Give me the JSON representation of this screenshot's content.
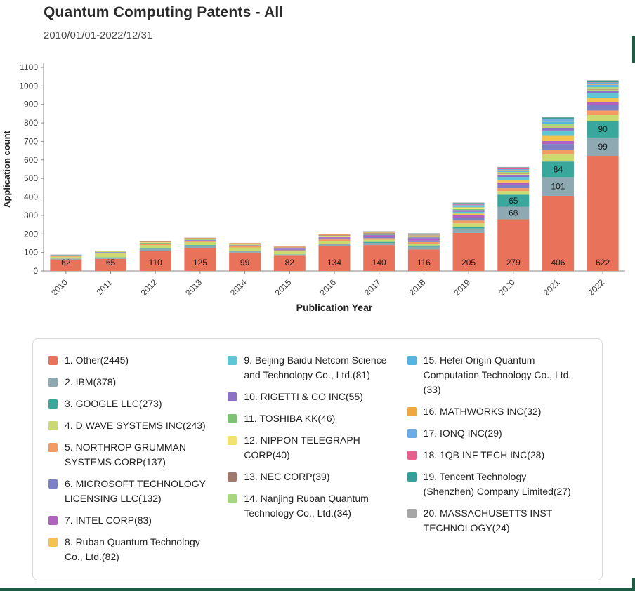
{
  "header": {
    "title": "Quantum Computing Patents - All",
    "date_range": "2010/01/01-2022/12/31"
  },
  "accents": {
    "edge_color": "#1E5B44",
    "axis_color": "#8a8a8a",
    "tick_label_color": "#3a3a3a",
    "bar_label_color": "#1a1a1a"
  },
  "chart_data": {
    "type": "bar",
    "stacked": true,
    "title": "Quantum Computing Patents - All",
    "xlabel": "Publication Year",
    "ylabel": "Application count",
    "ylim": [
      0,
      1100
    ],
    "y_tick_step": 100,
    "grid": false,
    "legend_position": "bottom",
    "legend_columns": [
      8,
      6,
      6
    ],
    "categories": [
      "2010",
      "2011",
      "2012",
      "2013",
      "2014",
      "2015",
      "2016",
      "2017",
      "2018",
      "2019",
      "2020",
      "2021",
      "2022"
    ],
    "labeled_segments_note": "Values labeled on chart: Other all years; IBM 2020-2022 (68,101,99); GOOGLE LLC 2020-2022 (65,84,90); other segment values estimated from bar heights",
    "series": [
      {
        "name": "Other",
        "total": 2445,
        "color": "#E8735A",
        "values": [
          62,
          65,
          110,
          125,
          99,
          82,
          134,
          140,
          116,
          205,
          279,
          406,
          622
        ]
      },
      {
        "name": "IBM",
        "total": 378,
        "color": "#8EA9B1",
        "values": [
          5,
          8,
          10,
          12,
          8,
          6,
          10,
          12,
          15,
          24,
          68,
          101,
          99
        ]
      },
      {
        "name": "GOOGLE LLC",
        "total": 273,
        "color": "#39A79C",
        "values": [
          0,
          1,
          2,
          3,
          2,
          2,
          4,
          5,
          7,
          8,
          65,
          84,
          90
        ]
      },
      {
        "name": "D WAVE SYSTEMS INC",
        "total": 243,
        "color": "#CBDA6F",
        "values": [
          10,
          20,
          18,
          16,
          18,
          16,
          14,
          12,
          10,
          20,
          20,
          38,
          31
        ]
      },
      {
        "name": "NORTHROP GRUMMAN SYSTEMS CORP",
        "total": 137,
        "color": "#F49B63",
        "values": [
          3,
          5,
          5,
          6,
          6,
          6,
          8,
          8,
          8,
          15,
          15,
          27,
          25
        ]
      },
      {
        "name": "MICROSOFT TECHNOLOGY LICENSING LLC",
        "total": 132,
        "color": "#7B80C7",
        "values": [
          2,
          3,
          3,
          4,
          4,
          5,
          6,
          7,
          8,
          14,
          16,
          30,
          30
        ]
      },
      {
        "name": "INTEL CORP",
        "total": 83,
        "color": "#B161BE",
        "values": [
          0,
          0,
          1,
          1,
          2,
          3,
          5,
          6,
          8,
          14,
          12,
          16,
          15
        ]
      },
      {
        "name": "Ruban Quantum Technology Co., Ltd.",
        "total": 82,
        "color": "#F3C24F",
        "values": [
          0,
          0,
          0,
          0,
          0,
          0,
          0,
          0,
          2,
          10,
          18,
          28,
          24
        ]
      },
      {
        "name": "Beijing Baidu Netcom Science and Technology Co., Ltd.",
        "total": 81,
        "color": "#5FC6D4",
        "values": [
          0,
          0,
          0,
          0,
          0,
          0,
          0,
          0,
          1,
          9,
          15,
          29,
          27
        ]
      },
      {
        "name": "RIGETTI & CO INC",
        "total": 55,
        "color": "#8C70C6",
        "values": [
          0,
          0,
          0,
          0,
          0,
          1,
          3,
          5,
          6,
          10,
          8,
          12,
          10
        ]
      },
      {
        "name": "TOSHIBA KK",
        "total": 46,
        "color": "#7CC272",
        "values": [
          2,
          2,
          3,
          3,
          3,
          3,
          3,
          4,
          4,
          5,
          5,
          5,
          4
        ]
      },
      {
        "name": "NIPPON TELEGRAPH CORP",
        "total": 40,
        "color": "#F3E272",
        "values": [
          2,
          2,
          3,
          3,
          3,
          3,
          3,
          3,
          3,
          4,
          4,
          4,
          3
        ]
      },
      {
        "name": "NEC CORP",
        "total": 39,
        "color": "#A3786C",
        "values": [
          2,
          2,
          3,
          3,
          3,
          3,
          3,
          3,
          3,
          4,
          4,
          3,
          3
        ]
      },
      {
        "name": "Nanjing Ruban Quantum Technology Co., Ltd.",
        "total": 34,
        "color": "#A6D67F",
        "values": [
          0,
          0,
          0,
          0,
          0,
          0,
          0,
          0,
          0,
          4,
          6,
          13,
          11
        ]
      },
      {
        "name": "Hefei Origin Quantum Computation Technology Co., Ltd.",
        "total": 33,
        "color": "#54B4E4",
        "values": [
          0,
          0,
          0,
          0,
          0,
          0,
          0,
          0,
          1,
          4,
          6,
          11,
          11
        ]
      },
      {
        "name": "MATHWORKS INC",
        "total": 32,
        "color": "#F0A73F",
        "values": [
          0,
          0,
          2,
          2,
          2,
          2,
          3,
          3,
          3,
          4,
          4,
          4,
          3
        ]
      },
      {
        "name": "IONQ INC",
        "total": 29,
        "color": "#6BACE8",
        "values": [
          0,
          0,
          0,
          0,
          0,
          0,
          0,
          1,
          2,
          4,
          5,
          8,
          9
        ]
      },
      {
        "name": "1QB INF TECH INC",
        "total": 28,
        "color": "#E75F8C",
        "values": [
          0,
          0,
          0,
          1,
          1,
          2,
          3,
          4,
          4,
          5,
          4,
          2,
          2
        ]
      },
      {
        "name": "Tencent Technology (Shenzhen) Company Limited",
        "total": 27,
        "color": "#35A099",
        "values": [
          0,
          0,
          0,
          0,
          0,
          0,
          0,
          0,
          1,
          4,
          5,
          8,
          9
        ]
      },
      {
        "name": "MASSACHUSETTS INST TECHNOLOGY",
        "total": 24,
        "color": "#A7A7A7",
        "values": [
          1,
          1,
          1,
          1,
          1,
          1,
          2,
          2,
          2,
          3,
          3,
          3,
          3
        ]
      }
    ]
  }
}
